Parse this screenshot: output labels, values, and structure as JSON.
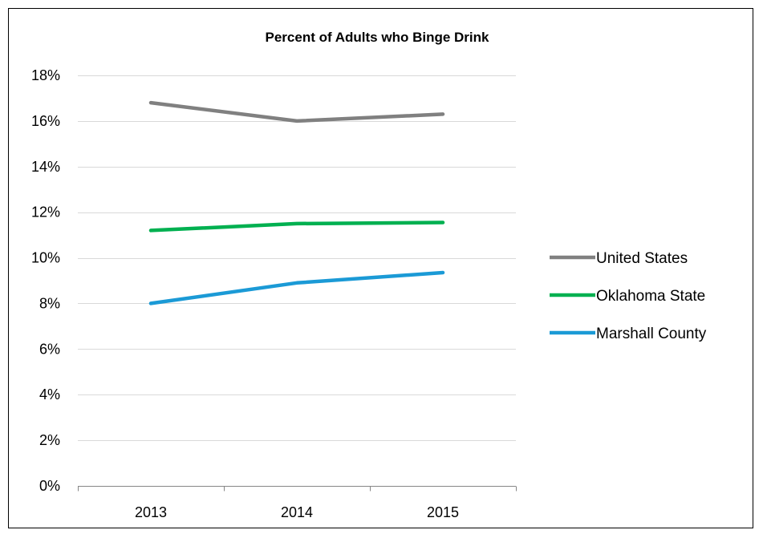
{
  "chart_data": {
    "type": "line",
    "title": "Percent of Adults who Binge Drink",
    "xlabel": "",
    "ylabel": "",
    "categories": [
      "2013",
      "2014",
      "2015"
    ],
    "ylim": [
      0,
      18
    ],
    "yticks": [
      0,
      2,
      4,
      6,
      8,
      10,
      12,
      14,
      16,
      18
    ],
    "ytick_labels": [
      "0%",
      "2%",
      "4%",
      "6%",
      "8%",
      "10%",
      "12%",
      "14%",
      "16%",
      "18%"
    ],
    "grid": true,
    "legend_position": "right",
    "series": [
      {
        "name": "United States",
        "color": "#808080",
        "values": [
          16.8,
          16.0,
          16.3
        ]
      },
      {
        "name": "Oklahoma State",
        "color": "#00B050",
        "values": [
          11.2,
          11.5,
          11.55
        ]
      },
      {
        "name": "Marshall County",
        "color": "#1B9AD6",
        "values": [
          8.0,
          8.9,
          9.35
        ]
      }
    ]
  }
}
